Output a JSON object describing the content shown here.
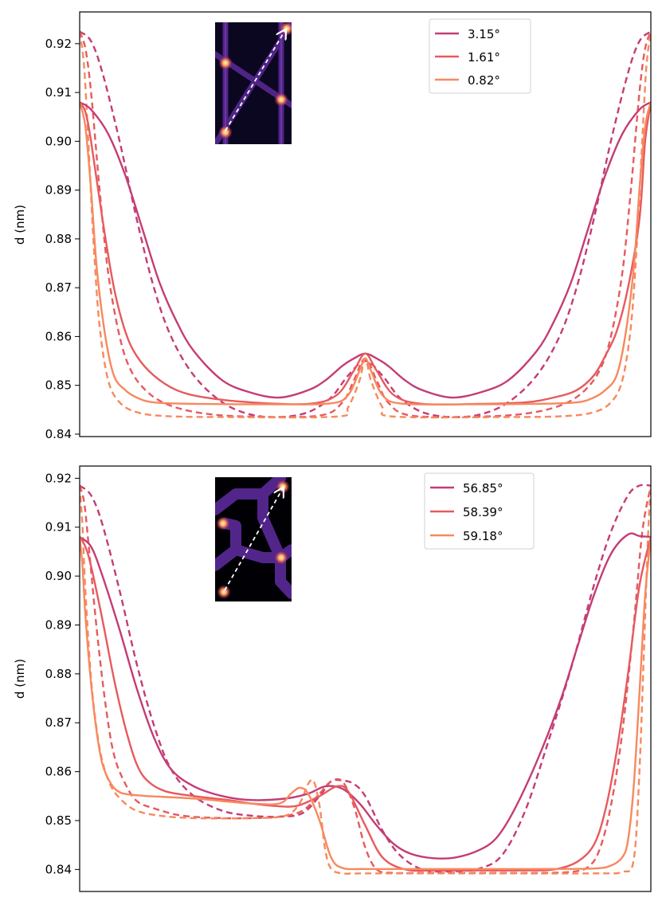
{
  "chart_data": [
    {
      "type": "line",
      "title": "",
      "xlabel": "",
      "ylabel": "d (nm)",
      "ylim": [
        0.8395,
        0.9265
      ],
      "xlim": [
        0,
        1
      ],
      "yticks": [
        0.84,
        0.85,
        0.86,
        0.87,
        0.88,
        0.89,
        0.9,
        0.91,
        0.92
      ],
      "ytick_labels": [
        "0.84",
        "0.85",
        "0.86",
        "0.87",
        "0.88",
        "0.89",
        "0.90",
        "0.91",
        "0.92"
      ],
      "x_ticks_visible": false,
      "legend_position": "top-right",
      "inset": "kagome-lattice-with-diagonal-arrow",
      "series": [
        {
          "name": "3.15°",
          "color": "#c43c75",
          "style": "solid",
          "x": [
            0,
            0.02,
            0.05,
            0.08,
            0.11,
            0.14,
            0.17,
            0.2,
            0.25,
            0.3,
            0.35,
            0.4,
            0.43,
            0.46,
            0.48,
            0.5,
            0.52,
            0.54,
            0.57,
            0.6,
            0.65,
            0.7,
            0.75,
            0.8,
            0.83,
            0.86,
            0.89,
            0.92,
            0.95,
            0.98,
            1.0
          ],
          "y": [
            0.908,
            0.9065,
            0.9015,
            0.893,
            0.882,
            0.871,
            0.863,
            0.857,
            0.851,
            0.8485,
            0.8475,
            0.849,
            0.851,
            0.854,
            0.8555,
            0.8565,
            0.8555,
            0.854,
            0.851,
            0.849,
            0.8475,
            0.8485,
            0.851,
            0.857,
            0.863,
            0.871,
            0.882,
            0.893,
            0.9015,
            0.9065,
            0.908
          ]
        },
        {
          "name": "3.15° (dashed)",
          "color": "#c43c75",
          "style": "dashed",
          "x": [
            0,
            0.02,
            0.04,
            0.07,
            0.1,
            0.13,
            0.16,
            0.2,
            0.25,
            0.3,
            0.35,
            0.4,
            0.44,
            0.47,
            0.5,
            0.53,
            0.56,
            0.6,
            0.65,
            0.7,
            0.75,
            0.8,
            0.84,
            0.87,
            0.9,
            0.93,
            0.96,
            0.98,
            1.0
          ],
          "y": [
            0.9225,
            0.9205,
            0.914,
            0.9,
            0.884,
            0.87,
            0.86,
            0.852,
            0.8465,
            0.844,
            0.8435,
            0.8445,
            0.8475,
            0.852,
            0.855,
            0.852,
            0.8475,
            0.8445,
            0.8435,
            0.844,
            0.8465,
            0.852,
            0.86,
            0.87,
            0.884,
            0.9,
            0.914,
            0.9205,
            0.9225
          ]
        },
        {
          "name": "1.61°",
          "color": "#e65a5e",
          "style": "solid",
          "x": [
            0,
            0.01,
            0.02,
            0.04,
            0.06,
            0.08,
            0.1,
            0.13,
            0.17,
            0.22,
            0.3,
            0.4,
            0.45,
            0.48,
            0.5,
            0.52,
            0.55,
            0.6,
            0.7,
            0.78,
            0.83,
            0.87,
            0.9,
            0.92,
            0.94,
            0.96,
            0.98,
            0.99,
            1.0
          ],
          "y": [
            0.908,
            0.906,
            0.9,
            0.884,
            0.87,
            0.861,
            0.856,
            0.852,
            0.849,
            0.8475,
            0.8465,
            0.8462,
            0.848,
            0.853,
            0.8565,
            0.853,
            0.848,
            0.8462,
            0.8462,
            0.8465,
            0.8475,
            0.849,
            0.852,
            0.856,
            0.861,
            0.87,
            0.884,
            0.9,
            0.908
          ]
        },
        {
          "name": "1.61° (dashed)",
          "color": "#e65a5e",
          "style": "dashed",
          "x": [
            0,
            0.01,
            0.02,
            0.035,
            0.05,
            0.07,
            0.09,
            0.12,
            0.16,
            0.22,
            0.3,
            0.42,
            0.46,
            0.48,
            0.5,
            0.52,
            0.54,
            0.58,
            0.7,
            0.78,
            0.84,
            0.88,
            0.91,
            0.93,
            0.95,
            0.965,
            0.98,
            0.99,
            1.0
          ],
          "y": [
            0.9225,
            0.919,
            0.91,
            0.89,
            0.873,
            0.86,
            0.853,
            0.8485,
            0.8458,
            0.8442,
            0.8436,
            0.8438,
            0.8465,
            0.851,
            0.8555,
            0.851,
            0.8465,
            0.8438,
            0.8436,
            0.8442,
            0.8458,
            0.8485,
            0.853,
            0.86,
            0.873,
            0.89,
            0.91,
            0.919,
            0.9225
          ]
        },
        {
          "name": "0.82°",
          "color": "#f7895e",
          "style": "solid",
          "x": [
            0,
            0.01,
            0.02,
            0.03,
            0.045,
            0.06,
            0.08,
            0.1,
            0.13,
            0.2,
            0.35,
            0.44,
            0.47,
            0.49,
            0.5,
            0.51,
            0.53,
            0.56,
            0.65,
            0.8,
            0.87,
            0.9,
            0.92,
            0.94,
            0.955,
            0.97,
            0.98,
            0.99,
            1.0
          ],
          "y": [
            0.908,
            0.903,
            0.89,
            0.874,
            0.86,
            0.852,
            0.849,
            0.8475,
            0.8465,
            0.8462,
            0.8461,
            0.8463,
            0.848,
            0.853,
            0.8555,
            0.853,
            0.848,
            0.8463,
            0.8461,
            0.8462,
            0.8465,
            0.8475,
            0.849,
            0.852,
            0.86,
            0.874,
            0.89,
            0.903,
            0.908
          ]
        },
        {
          "name": "0.82° (dashed)",
          "color": "#f7895e",
          "style": "dashed",
          "x": [
            0,
            0.008,
            0.016,
            0.025,
            0.035,
            0.05,
            0.07,
            0.1,
            0.15,
            0.25,
            0.45,
            0.47,
            0.49,
            0.5,
            0.51,
            0.53,
            0.55,
            0.75,
            0.85,
            0.9,
            0.93,
            0.95,
            0.965,
            0.975,
            0.984,
            0.992,
            1.0
          ],
          "y": [
            0.9225,
            0.915,
            0.898,
            0.878,
            0.862,
            0.851,
            0.8465,
            0.8445,
            0.8437,
            0.8435,
            0.8436,
            0.8455,
            0.851,
            0.8555,
            0.851,
            0.8455,
            0.8436,
            0.8435,
            0.8437,
            0.8445,
            0.8465,
            0.851,
            0.862,
            0.878,
            0.898,
            0.915,
            0.9225
          ]
        }
      ],
      "legend": [
        {
          "label": "3.15°",
          "color": "#c43c75"
        },
        {
          "label": "1.61°",
          "color": "#e65a5e"
        },
        {
          "label": "0.82°",
          "color": "#f7895e"
        }
      ]
    },
    {
      "type": "line",
      "title": "",
      "xlabel": "",
      "ylabel": "d (nm)",
      "ylim": [
        0.8355,
        0.9225
      ],
      "xlim": [
        0,
        1
      ],
      "yticks": [
        0.84,
        0.85,
        0.86,
        0.87,
        0.88,
        0.89,
        0.9,
        0.91,
        0.92
      ],
      "ytick_labels": [
        "0.84",
        "0.85",
        "0.86",
        "0.87",
        "0.88",
        "0.89",
        "0.90",
        "0.91",
        "0.92"
      ],
      "x_ticks_visible": false,
      "legend_position": "top-right",
      "inset": "honeycomb-lattice-with-diagonal-arrow",
      "series": [
        {
          "name": "56.85°",
          "color": "#c43c75",
          "style": "solid",
          "x": [
            0,
            0.02,
            0.04,
            0.07,
            0.1,
            0.13,
            0.16,
            0.2,
            0.25,
            0.3,
            0.36,
            0.4,
            0.43,
            0.46,
            0.49,
            0.52,
            0.55,
            0.58,
            0.62,
            0.66,
            0.7,
            0.73,
            0.76,
            0.8,
            0.84,
            0.87,
            0.9,
            0.93,
            0.96,
            0.98,
            1.0
          ],
          "y": [
            0.908,
            0.906,
            0.9,
            0.889,
            0.877,
            0.867,
            0.8605,
            0.857,
            0.855,
            0.8542,
            0.8545,
            0.8555,
            0.857,
            0.8565,
            0.8535,
            0.849,
            0.8452,
            0.8432,
            0.8423,
            0.8425,
            0.844,
            0.8465,
            0.852,
            0.862,
            0.874,
            0.885,
            0.896,
            0.9045,
            0.9085,
            0.9082,
            0.908
          ]
        },
        {
          "name": "56.85° (dashed)",
          "color": "#c43c75",
          "style": "dashed",
          "x": [
            0,
            0.02,
            0.04,
            0.07,
            0.1,
            0.13,
            0.16,
            0.2,
            0.25,
            0.3,
            0.35,
            0.39,
            0.42,
            0.44,
            0.46,
            0.48,
            0.5,
            0.53,
            0.56,
            0.6,
            0.65,
            0.7,
            0.74,
            0.78,
            0.82,
            0.86,
            0.9,
            0.93,
            0.96,
            0.98,
            1.0
          ],
          "y": [
            0.9185,
            0.9165,
            0.9105,
            0.897,
            0.882,
            0.8695,
            0.8605,
            0.855,
            0.852,
            0.851,
            0.8508,
            0.8515,
            0.855,
            0.858,
            0.8582,
            0.8575,
            0.855,
            0.848,
            0.843,
            0.84,
            0.8396,
            0.8402,
            0.843,
            0.852,
            0.866,
            0.881,
            0.898,
            0.909,
            0.9165,
            0.9185,
            0.9185
          ]
        },
        {
          "name": "58.39°",
          "color": "#e65a5e",
          "style": "solid",
          "x": [
            0,
            0.01,
            0.02,
            0.04,
            0.06,
            0.08,
            0.1,
            0.12,
            0.15,
            0.2,
            0.26,
            0.3,
            0.34,
            0.38,
            0.42,
            0.45,
            0.47,
            0.5,
            0.53,
            0.57,
            0.62,
            0.7,
            0.78,
            0.83,
            0.87,
            0.9,
            0.92,
            0.94,
            0.96,
            0.98,
            1.0
          ],
          "y": [
            0.908,
            0.906,
            0.902,
            0.891,
            0.879,
            0.869,
            0.8615,
            0.858,
            0.856,
            0.855,
            0.8542,
            0.8535,
            0.853,
            0.853,
            0.855,
            0.857,
            0.856,
            0.849,
            0.8425,
            0.84,
            0.8398,
            0.8398,
            0.8398,
            0.84,
            0.8415,
            0.845,
            0.852,
            0.864,
            0.88,
            0.898,
            0.908
          ]
        },
        {
          "name": "58.39° (dashed)",
          "color": "#e65a5e",
          "style": "dashed",
          "x": [
            0,
            0.008,
            0.016,
            0.03,
            0.045,
            0.06,
            0.08,
            0.1,
            0.13,
            0.18,
            0.25,
            0.3,
            0.35,
            0.39,
            0.42,
            0.44,
            0.46,
            0.48,
            0.5,
            0.52,
            0.55,
            0.6,
            0.7,
            0.8,
            0.86,
            0.89,
            0.91,
            0.93,
            0.95,
            0.97,
            0.985,
            1.0
          ],
          "y": [
            0.9185,
            0.915,
            0.906,
            0.889,
            0.874,
            0.8635,
            0.8575,
            0.854,
            0.8525,
            0.851,
            0.8505,
            0.8505,
            0.8508,
            0.852,
            0.8555,
            0.858,
            0.858,
            0.853,
            0.8445,
            0.84,
            0.8393,
            0.8393,
            0.8393,
            0.8393,
            0.8395,
            0.8405,
            0.844,
            0.853,
            0.868,
            0.89,
            0.909,
            0.9185
          ]
        },
        {
          "name": "59.18°",
          "color": "#f7895e",
          "style": "solid",
          "x": [
            0,
            0.005,
            0.01,
            0.02,
            0.03,
            0.04,
            0.055,
            0.07,
            0.09,
            0.12,
            0.2,
            0.3,
            0.35,
            0.37,
            0.385,
            0.4,
            0.42,
            0.44,
            0.46,
            0.5,
            0.6,
            0.8,
            0.9,
            0.93,
            0.95,
            0.96,
            0.97,
            0.98,
            0.99,
            1.0
          ],
          "y": [
            0.908,
            0.902,
            0.892,
            0.878,
            0.868,
            0.8615,
            0.8575,
            0.8558,
            0.8553,
            0.855,
            0.8545,
            0.8535,
            0.8535,
            0.8555,
            0.8567,
            0.8555,
            0.85,
            0.8425,
            0.8403,
            0.8401,
            0.8401,
            0.8401,
            0.8402,
            0.8408,
            0.8425,
            0.846,
            0.857,
            0.876,
            0.896,
            0.908
          ]
        },
        {
          "name": "59.18° (dashed)",
          "color": "#f7895e",
          "style": "dashed",
          "x": [
            0,
            0.005,
            0.01,
            0.02,
            0.03,
            0.04,
            0.055,
            0.075,
            0.1,
            0.14,
            0.2,
            0.3,
            0.36,
            0.385,
            0.4,
            0.41,
            0.42,
            0.43,
            0.44,
            0.46,
            0.5,
            0.7,
            0.9,
            0.95,
            0.97,
            0.98,
            0.988,
            0.995,
            1.0
          ],
          "y": [
            0.9185,
            0.91,
            0.897,
            0.879,
            0.8685,
            0.862,
            0.857,
            0.854,
            0.852,
            0.851,
            0.8505,
            0.8505,
            0.851,
            0.8535,
            0.8575,
            0.858,
            0.853,
            0.844,
            0.8402,
            0.8392,
            0.8392,
            0.8392,
            0.8392,
            0.8395,
            0.842,
            0.86,
            0.885,
            0.908,
            0.9185
          ]
        }
      ],
      "legend": [
        {
          "label": "56.85°",
          "color": "#c43c75"
        },
        {
          "label": "58.39°",
          "color": "#e65a5e"
        },
        {
          "label": "59.18°",
          "color": "#f7895e"
        }
      ]
    }
  ]
}
